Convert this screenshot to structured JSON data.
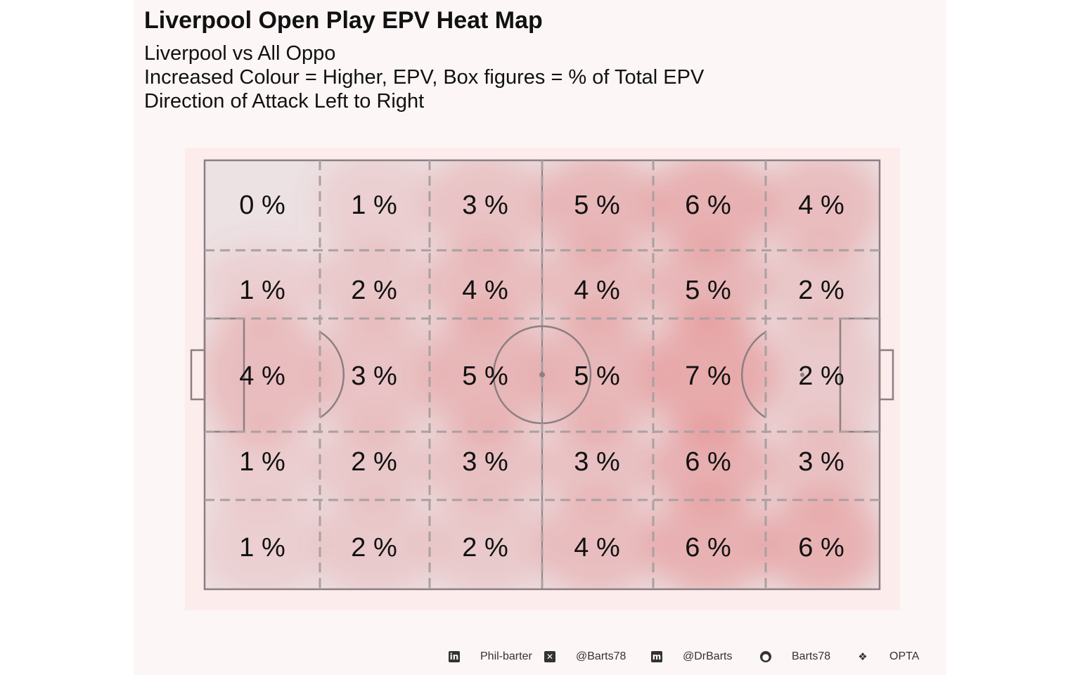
{
  "page": {
    "title": "Liverpool Open Play EPV Heat Map",
    "subtitle_lines": [
      "Liverpool vs All Oppo",
      "Increased Colour = Higher, EPV, Box figures = % of Total EPV",
      "Direction of Attack Left to Right"
    ]
  },
  "colors": {
    "panel_bg": "#fdf6f6",
    "pitch_bg": "#fdecec",
    "zone_fill": "#ece2e4",
    "heat": "#e05a5a",
    "lines": "#8c7f82",
    "dashes": "#a9a0a2"
  },
  "chart_data": {
    "type": "heatmap",
    "title": "Liverpool Open Play EPV Heat Map",
    "value_unit": "%",
    "grid_columns": 6,
    "grid_rows": 5,
    "attack_direction": "left-to-right",
    "zones": [
      [
        "0 %",
        "1 %",
        "3 %",
        "5 %",
        "6 %",
        "4 %"
      ],
      [
        "1 %",
        "2 %",
        "4 %",
        "4 %",
        "5 %",
        "2 %"
      ],
      [
        "4 %",
        "3 %",
        "5 %",
        "5 %",
        "7 %",
        "2 %"
      ],
      [
        "1 %",
        "2 %",
        "3 %",
        "3 %",
        "6 %",
        "3 %"
      ],
      [
        "1 %",
        "2 %",
        "2 %",
        "4 %",
        "6 %",
        "6 %"
      ]
    ],
    "zone_values": [
      [
        0,
        1,
        3,
        5,
        6,
        4
      ],
      [
        1,
        2,
        4,
        4,
        5,
        2
      ],
      [
        4,
        3,
        5,
        5,
        7,
        2
      ],
      [
        1,
        2,
        3,
        3,
        6,
        3
      ],
      [
        1,
        2,
        2,
        4,
        6,
        6
      ]
    ]
  },
  "footer": {
    "items": [
      {
        "icon": "linkedin-icon",
        "label": "Phil-barter"
      },
      {
        "icon": "x-twitter-icon",
        "label": "@Barts78"
      },
      {
        "icon": "mastodon-icon",
        "label": "@DrBarts"
      },
      {
        "icon": "github-icon",
        "label": "Barts78"
      },
      {
        "icon": "dropbox-icon",
        "label": "OPTA"
      }
    ]
  }
}
